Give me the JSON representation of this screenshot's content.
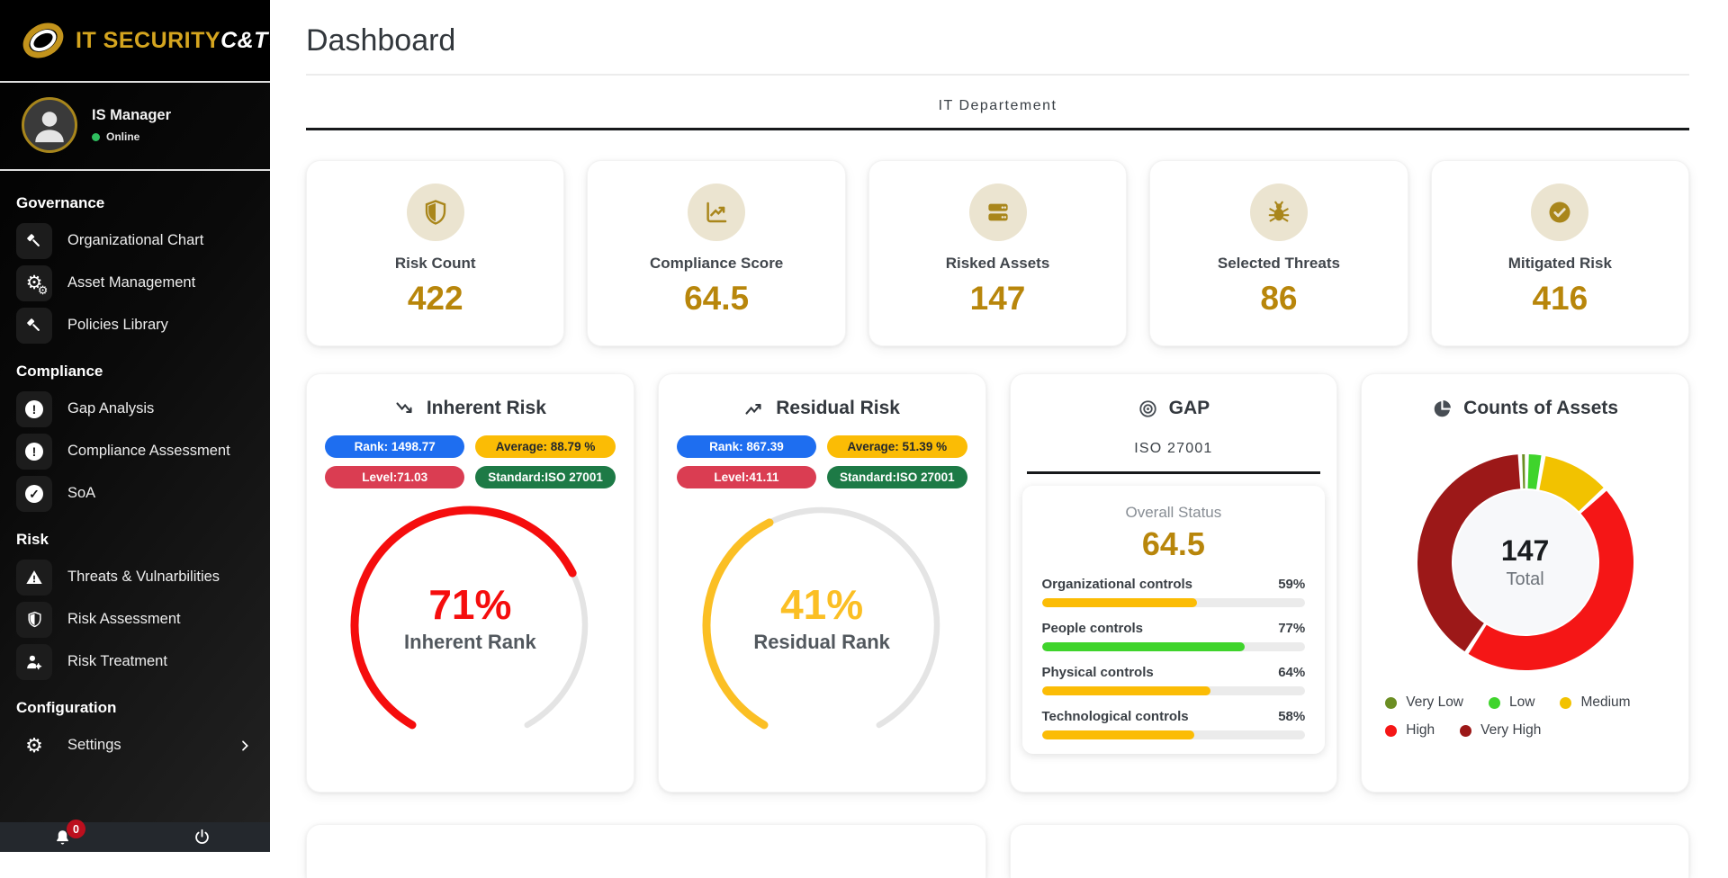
{
  "sidebar": {
    "brand": {
      "name_gold": "IT SECURITY",
      "name_white": "C&T",
      "close": "×"
    },
    "profile": {
      "name": "IS Manager",
      "status": "Online"
    },
    "sections": [
      {
        "label": "Governance",
        "items": [
          {
            "label": "Organizational Chart",
            "icon": "gavel-icon"
          },
          {
            "label": "Asset Management",
            "icon": "gears-icon"
          },
          {
            "label": "Policies Library",
            "icon": "gavel-icon"
          }
        ]
      },
      {
        "label": "Compliance",
        "items": [
          {
            "label": "Gap Analysis",
            "icon": "exclamation-circle-icon"
          },
          {
            "label": "Compliance Assessment",
            "icon": "exclamation-circle-icon"
          },
          {
            "label": "SoA",
            "icon": "check-circle-icon"
          }
        ]
      },
      {
        "label": "Risk",
        "items": [
          {
            "label": "Threats & Vulnarbilities",
            "icon": "warning-triangle-icon"
          },
          {
            "label": "Risk Assessment",
            "icon": "shield-half-icon"
          },
          {
            "label": "Risk Treatment",
            "icon": "user-gear-icon"
          }
        ]
      },
      {
        "label": "Configuration",
        "items": [
          {
            "label": "Settings",
            "icon": "gear-icon",
            "has_submenu": true
          }
        ]
      }
    ],
    "footer": {
      "notifications_badge": "0"
    }
  },
  "header": {
    "title": "Dashboard",
    "tab": "IT Departement"
  },
  "stats": [
    {
      "label": "Risk Count",
      "value": "422",
      "icon": "shield-icon"
    },
    {
      "label": "Compliance Score",
      "value": "64.5",
      "icon": "chart-line-icon"
    },
    {
      "label": "Risked Assets",
      "value": "147",
      "icon": "server-icon"
    },
    {
      "label": "Selected Threats",
      "value": "86",
      "icon": "bug-icon"
    },
    {
      "label": "Mitigated Risk",
      "value": "416",
      "icon": "check-circle-icon"
    }
  ],
  "chart_data": [
    {
      "type": "gauge",
      "id": "inherent",
      "title": "Inherent Risk",
      "value_pct": 71,
      "center_text": "71%",
      "center_label": "Inherent Rank",
      "color": "#f50d0d",
      "arc_span_deg": 300,
      "badge_texts": {
        "rank": "Rank: 1498.77",
        "average": "Average: 88.79 %",
        "level": "Level:71.03",
        "standard": "Standard:ISO 27001"
      }
    },
    {
      "type": "gauge",
      "id": "residual",
      "title": "Residual Risk",
      "value_pct": 41,
      "center_text": "41%",
      "center_label": "Residual Rank",
      "color": "#fbbf24",
      "arc_span_deg": 300,
      "badge_texts": {
        "rank": "Rank: 867.39",
        "average": "Average: 51.39 %",
        "level": "Level:41.11",
        "standard": "Standard:ISO 27001"
      }
    },
    {
      "type": "bar",
      "id": "gap",
      "title": "GAP",
      "standard_tab": "ISO 27001",
      "overall_label": "Overall Status",
      "overall_value": "64.5",
      "categories": [
        "Organizational controls",
        "People controls",
        "Physical controls",
        "Technological controls"
      ],
      "values": [
        59,
        77,
        64,
        58
      ],
      "colors": [
        "#fbbc05",
        "#3fd42c",
        "#fbbc05",
        "#fbbc05"
      ],
      "ylim": [
        0,
        100
      ]
    },
    {
      "type": "pie",
      "id": "assets",
      "title": "Counts of Assets",
      "total": "147",
      "center_label": "Total",
      "categories": [
        "Very Low",
        "Low",
        "Medium",
        "High",
        "Very High"
      ],
      "values_pct": [
        1,
        2.5,
        10.5,
        46,
        40
      ],
      "colors": [
        "#6b8e23",
        "#3fd42c",
        "#f2c200",
        "#f51616",
        "#9c1818"
      ],
      "legend_position": "bottom"
    }
  ]
}
